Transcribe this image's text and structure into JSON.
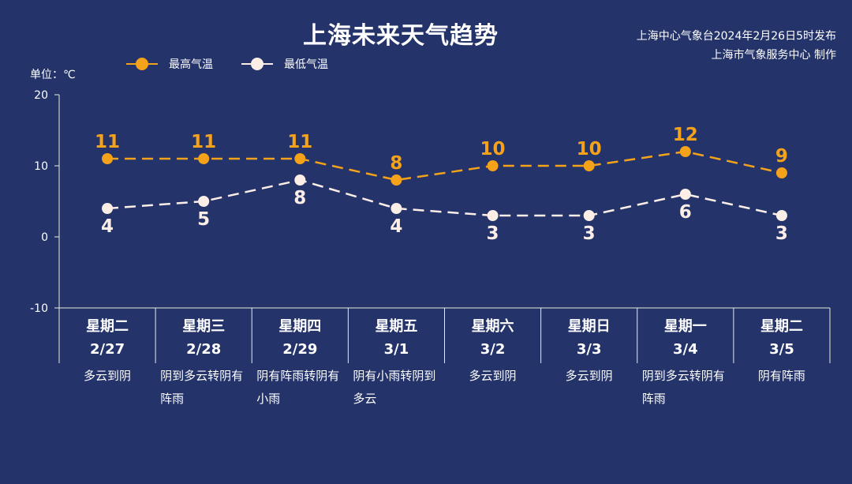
{
  "title": "上海未来天气趋势",
  "source_lines": [
    "上海中心气象台2024年2月26日5时发布",
    "上海市气象服务中心 制作"
  ],
  "unit_label": "单位：℃",
  "colors": {
    "background": "#24336a",
    "high": "#f5a21b",
    "low": "#fbeee6",
    "axis": "#e8edd6"
  },
  "chart_data": {
    "type": "line",
    "ylim": [
      -10,
      20
    ],
    "yticks": [
      20,
      10,
      0,
      -10
    ],
    "categories": [
      "星期二",
      "星期三",
      "星期四",
      "星期五",
      "星期六",
      "星期日",
      "星期一",
      "星期二"
    ],
    "dates": [
      "2/27",
      "2/28",
      "2/29",
      "3/1",
      "3/2",
      "3/3",
      "3/4",
      "3/5"
    ],
    "weather": [
      "多云到阴",
      "阴到多云转阴有阵雨",
      "阴有阵雨转阴有小雨",
      "阴有小雨转阴到多云",
      "多云到阴",
      "多云到阴",
      "阴到多云转阴有阵雨",
      "阴有阵雨"
    ],
    "series": [
      {
        "name": "最高气温",
        "values": [
          11,
          11,
          11,
          8,
          10,
          10,
          12,
          9
        ]
      },
      {
        "name": "最低气温",
        "values": [
          4,
          5,
          8,
          4,
          3,
          3,
          6,
          3
        ]
      }
    ],
    "legend": "top-left",
    "grid": false
  }
}
